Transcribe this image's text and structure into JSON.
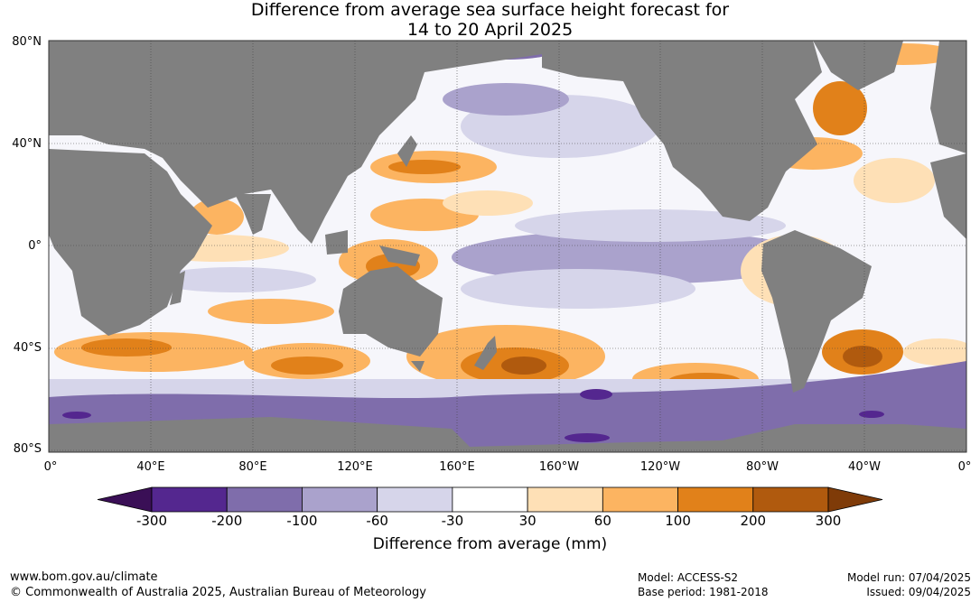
{
  "title": {
    "line1": "Difference from average sea surface height forecast for",
    "line2": "14 to 20 April 2025"
  },
  "map": {
    "lat_labels": [
      "80°N",
      "40°N",
      "0°",
      "40°S",
      "80°S"
    ],
    "lon_labels": [
      "0°",
      "40°E",
      "80°E",
      "120°E",
      "160°E",
      "160°W",
      "120°W",
      "80°W",
      "40°W",
      "0°"
    ],
    "land_color": "#808080"
  },
  "colorbar": {
    "title": "Difference from average (mm)",
    "tick_labels": [
      "-300",
      "-200",
      "-100",
      "-60",
      "-30",
      "30",
      "60",
      "100",
      "200",
      "300"
    ],
    "colors": [
      "#3a0f56",
      "#54278f",
      "#7f6dab",
      "#aaa2cc",
      "#d6d5ea",
      "#ffffff",
      "#fee0b6",
      "#fcb461",
      "#e1811a",
      "#b05a0e",
      "#7f3b08"
    ]
  },
  "footer": {
    "website": "www.bom.gov.au/climate",
    "copyright": "© Commonwealth of Australia 2025, Australian Bureau of Meteorology",
    "model": "Model: ACCESS-S2",
    "base_period": "Base period: 1981-2018",
    "model_run": "Model run: 07/04/2025",
    "issued": "Issued: 09/04/2025"
  }
}
